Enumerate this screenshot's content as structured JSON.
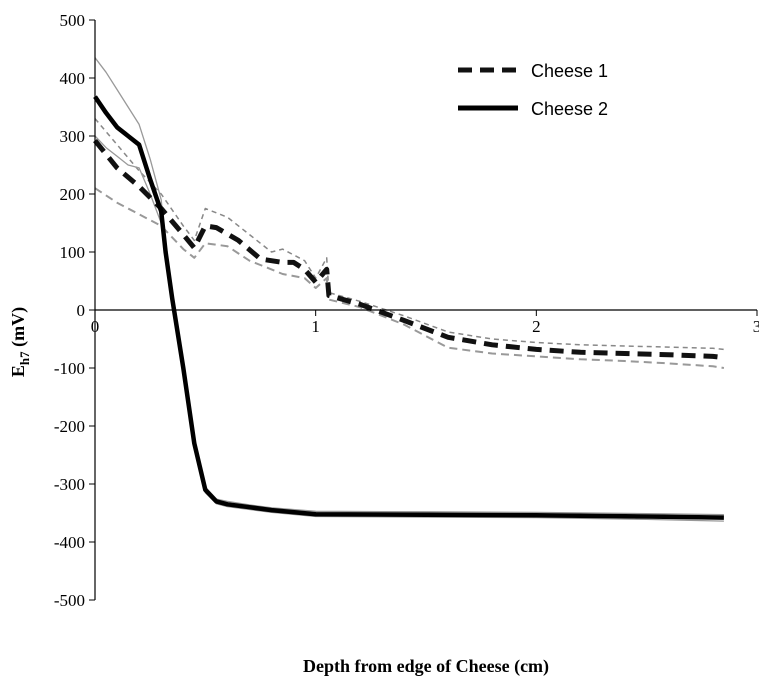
{
  "chart_data": {
    "type": "line",
    "title": "",
    "xlabel": "Depth from edge of Cheese (cm)",
    "ylabel_main": "E",
    "ylabel_sub": "h7",
    "ylabel_unit": " (mV)",
    "xlim": [
      0,
      3
    ],
    "ylim": [
      -500,
      500
    ],
    "x_ticks": [
      0,
      1,
      2,
      3
    ],
    "x_tick_labels": [
      "0",
      "1",
      "2",
      "3"
    ],
    "y_ticks": [
      500,
      400,
      300,
      200,
      100,
      0,
      -100,
      -200,
      -300,
      -400,
      -500
    ],
    "y_tick_labels": [
      "500",
      "400",
      "300",
      "200",
      "100",
      "0",
      "-100",
      "-200",
      "-300",
      "-400",
      "-500"
    ],
    "grid": false,
    "legend_position": "top-right",
    "series": [
      {
        "name": "Cheese 1",
        "style": "dashed",
        "color": "#111111",
        "points": [
          [
            0,
            292
          ],
          [
            0.1,
            245
          ],
          [
            0.2,
            213
          ],
          [
            0.3,
            175
          ],
          [
            0.4,
            130
          ],
          [
            0.45,
            107
          ],
          [
            0.5,
            145
          ],
          [
            0.55,
            142
          ],
          [
            0.65,
            120
          ],
          [
            0.75,
            88
          ],
          [
            0.85,
            82
          ],
          [
            0.9,
            82
          ],
          [
            0.95,
            70
          ],
          [
            1.0,
            48
          ],
          [
            1.05,
            70
          ],
          [
            1.06,
            25
          ],
          [
            1.2,
            10
          ],
          [
            1.4,
            -18
          ],
          [
            1.6,
            -47
          ],
          [
            1.8,
            -60
          ],
          [
            2.0,
            -68
          ],
          [
            2.2,
            -73
          ],
          [
            2.4,
            -75
          ],
          [
            2.6,
            -77
          ],
          [
            2.8,
            -80
          ],
          [
            2.85,
            -82
          ]
        ]
      },
      {
        "name": "",
        "style": "thin-dashed-upper",
        "color": "#888888",
        "points": [
          [
            0,
            330
          ],
          [
            0.1,
            285
          ],
          [
            0.2,
            240
          ],
          [
            0.3,
            200
          ],
          [
            0.4,
            145
          ],
          [
            0.45,
            120
          ],
          [
            0.5,
            175
          ],
          [
            0.6,
            160
          ],
          [
            0.7,
            130
          ],
          [
            0.8,
            100
          ],
          [
            0.85,
            105
          ],
          [
            0.95,
            85
          ],
          [
            1.0,
            55
          ],
          [
            1.05,
            90
          ],
          [
            1.06,
            30
          ],
          [
            1.2,
            15
          ],
          [
            1.4,
            -10
          ],
          [
            1.6,
            -38
          ],
          [
            1.8,
            -50
          ],
          [
            2.0,
            -56
          ],
          [
            2.2,
            -60
          ],
          [
            2.4,
            -62
          ],
          [
            2.6,
            -64
          ],
          [
            2.8,
            -66
          ],
          [
            2.85,
            -68
          ]
        ]
      },
      {
        "name": "",
        "style": "thin-dashed-lower",
        "color": "#999999",
        "points": [
          [
            0,
            210
          ],
          [
            0.1,
            185
          ],
          [
            0.2,
            165
          ],
          [
            0.3,
            145
          ],
          [
            0.4,
            105
          ],
          [
            0.45,
            90
          ],
          [
            0.5,
            115
          ],
          [
            0.6,
            110
          ],
          [
            0.7,
            85
          ],
          [
            0.8,
            70
          ],
          [
            0.85,
            62
          ],
          [
            0.95,
            55
          ],
          [
            1.0,
            38
          ],
          [
            1.05,
            55
          ],
          [
            1.06,
            18
          ],
          [
            1.2,
            5
          ],
          [
            1.4,
            -25
          ],
          [
            1.6,
            -65
          ],
          [
            1.8,
            -75
          ],
          [
            2.0,
            -80
          ],
          [
            2.2,
            -85
          ],
          [
            2.4,
            -88
          ],
          [
            2.6,
            -92
          ],
          [
            2.8,
            -97
          ],
          [
            2.85,
            -100
          ]
        ]
      },
      {
        "name": "Cheese 2",
        "style": "solid",
        "color": "#000000",
        "points": [
          [
            0,
            368
          ],
          [
            0.05,
            340
          ],
          [
            0.1,
            315
          ],
          [
            0.15,
            300
          ],
          [
            0.2,
            285
          ],
          [
            0.25,
            225
          ],
          [
            0.3,
            170
          ],
          [
            0.32,
            100
          ],
          [
            0.35,
            20
          ],
          [
            0.4,
            -100
          ],
          [
            0.45,
            -230
          ],
          [
            0.5,
            -310
          ],
          [
            0.55,
            -330
          ],
          [
            0.6,
            -335
          ],
          [
            0.7,
            -340
          ],
          [
            0.8,
            -345
          ],
          [
            1.0,
            -352
          ],
          [
            1.5,
            -353
          ],
          [
            2.0,
            -354
          ],
          [
            2.5,
            -356
          ],
          [
            2.85,
            -358
          ]
        ]
      },
      {
        "name": "",
        "style": "thin-solid-upper",
        "color": "#999999",
        "points": [
          [
            0,
            435
          ],
          [
            0.05,
            410
          ],
          [
            0.1,
            380
          ],
          [
            0.15,
            350
          ],
          [
            0.2,
            320
          ],
          [
            0.25,
            260
          ],
          [
            0.3,
            190
          ],
          [
            0.32,
            110
          ],
          [
            0.35,
            25
          ],
          [
            0.4,
            -95
          ],
          [
            0.45,
            -225
          ],
          [
            0.5,
            -305
          ],
          [
            0.55,
            -326
          ],
          [
            0.6,
            -330
          ],
          [
            0.7,
            -336
          ],
          [
            0.8,
            -341
          ],
          [
            1.0,
            -347
          ],
          [
            1.5,
            -348
          ],
          [
            2.0,
            -349
          ],
          [
            2.5,
            -351
          ],
          [
            2.85,
            -353
          ]
        ]
      },
      {
        "name": "",
        "style": "thin-solid-lower",
        "color": "#999999",
        "points": [
          [
            0,
            300
          ],
          [
            0.05,
            280
          ],
          [
            0.1,
            265
          ],
          [
            0.15,
            250
          ],
          [
            0.2,
            245
          ],
          [
            0.25,
            200
          ],
          [
            0.3,
            150
          ],
          [
            0.32,
            90
          ],
          [
            0.35,
            15
          ],
          [
            0.4,
            -105
          ],
          [
            0.45,
            -235
          ],
          [
            0.5,
            -315
          ],
          [
            0.55,
            -334
          ],
          [
            0.6,
            -339
          ],
          [
            0.7,
            -344
          ],
          [
            0.8,
            -349
          ],
          [
            1.0,
            -356
          ],
          [
            1.5,
            -357
          ],
          [
            2.0,
            -358
          ],
          [
            2.5,
            -361
          ],
          [
            2.85,
            -364
          ]
        ]
      }
    ]
  }
}
